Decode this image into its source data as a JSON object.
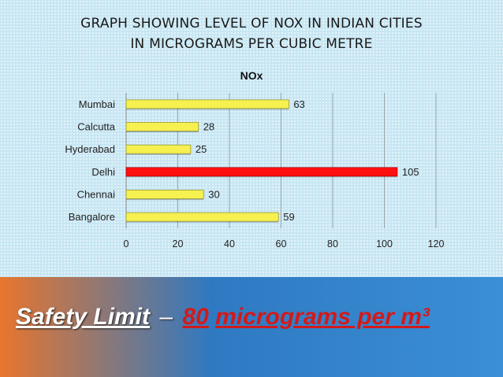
{
  "slide": {
    "title_line1": "GRAPH SHOWING LEVEL OF NOX IN INDIAN CITIES",
    "title_line2": "IN MICROGRAMS PER CUBIC METRE",
    "safety_label": "Safety Limit",
    "safety_dash": "–",
    "safety_value": "80",
    "safety_unit": "micrograms per m³"
  },
  "colors": {
    "bar": "#f6f050",
    "highlight_bar": "#ff1010",
    "accent_red": "#d21a1a"
  },
  "chart_data": {
    "type": "bar",
    "orientation": "horizontal",
    "title": "NOx",
    "categories": [
      "Mumbai",
      "Calcutta",
      "Hyderabad",
      "Delhi",
      "Chennai",
      "Bangalore"
    ],
    "values": [
      63,
      28,
      25,
      105,
      30,
      59
    ],
    "data_labels": [
      "63",
      "28",
      "25",
      "105",
      "30",
      "59"
    ],
    "highlight": "Delhi",
    "xlim": [
      0,
      120
    ],
    "xticks": [
      "0",
      "20",
      "40",
      "60",
      "80",
      "100",
      "120"
    ],
    "grid": "vertical",
    "legend": "none"
  }
}
